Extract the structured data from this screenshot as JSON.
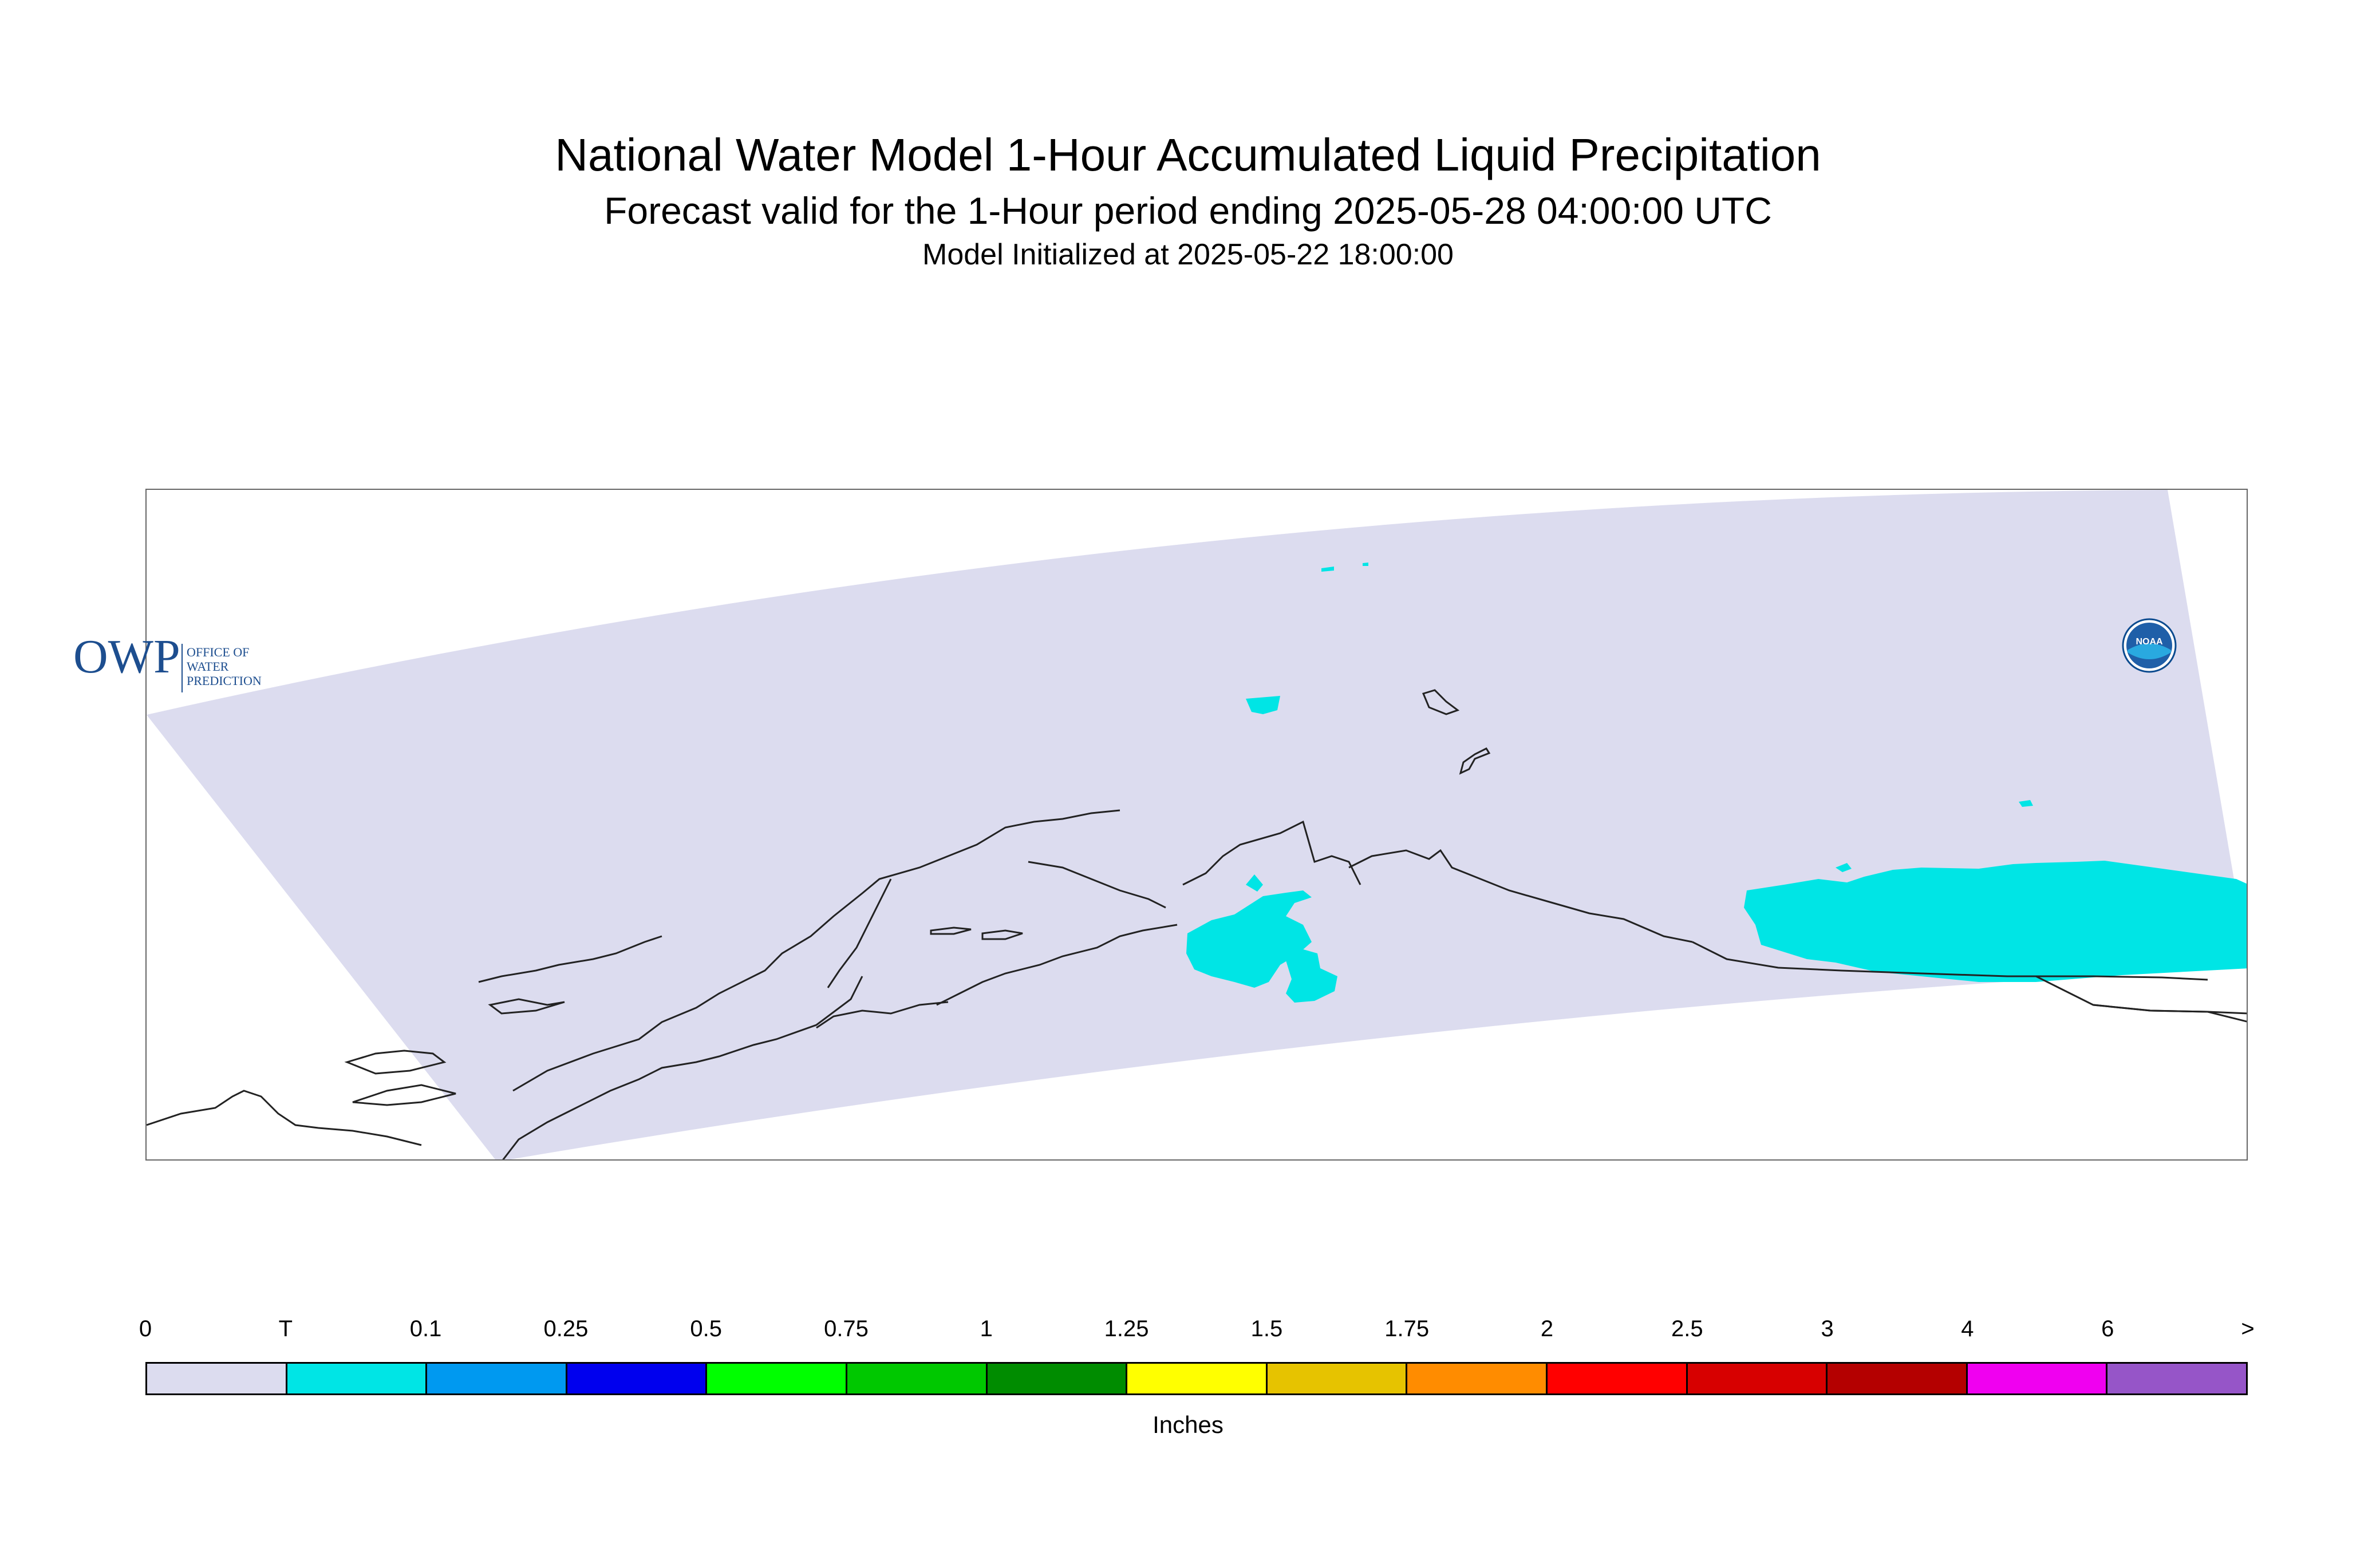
{
  "header": {
    "title": "National Water Model 1-Hour Accumulated Liquid Precipitation",
    "subtitle": "Forecast valid for the 1-Hour period ending 2025-05-28 04:00:00 UTC",
    "init": "Model Initialized at 2025-05-22 18:00:00"
  },
  "map": {
    "domain_color": "#dcdcef",
    "precip_color": "#00e5e5",
    "coast_color": "#222222"
  },
  "logos": {
    "owp": {
      "big": "OWP",
      "line1": "OFFICE OF",
      "line2": "WATER",
      "line3": "PREDICTION"
    },
    "noaa": {
      "text": "NOAA"
    }
  },
  "legend": {
    "ticks": [
      "0",
      "T",
      "0.1",
      "0.25",
      "0.5",
      "0.75",
      "1",
      "1.25",
      "1.5",
      "1.75",
      "2",
      "2.5",
      "3",
      "4",
      "6",
      ">"
    ],
    "colors": [
      "#dcdcef",
      "#00e5e5",
      "#0099f0",
      "#0000ee",
      "#00ff00",
      "#00c800",
      "#008c00",
      "#ffff00",
      "#e6c300",
      "#ff8c00",
      "#ff0000",
      "#d70000",
      "#b40000",
      "#f000f0",
      "#9655c8"
    ],
    "units": "Inches"
  }
}
